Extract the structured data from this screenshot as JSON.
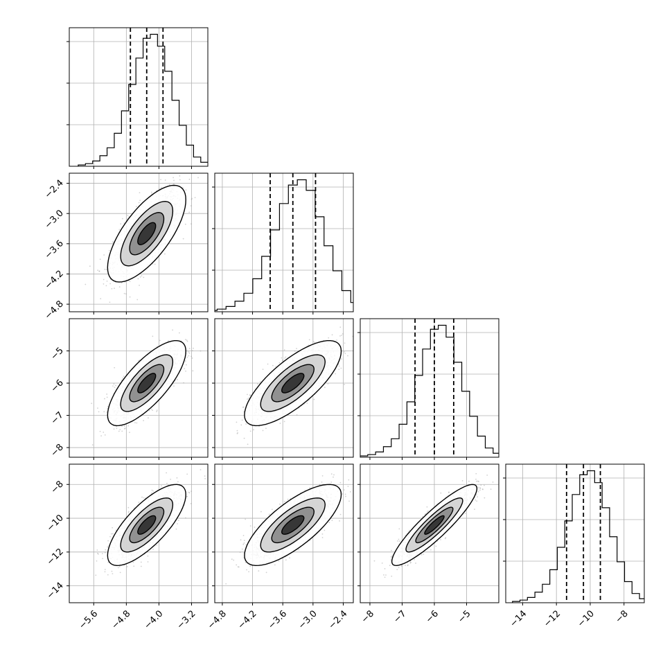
{
  "chart_data": {
    "type": "corner",
    "title": "",
    "parameters": [
      {
        "range": [
          -6.2,
          -2.8
        ],
        "ticks": [
          -5.6,
          -4.8,
          -4.0,
          -3.2
        ],
        "tick_labels": [
          "−5.6",
          "−4.8",
          "−4.0",
          "−3.2"
        ],
        "mean": -4.3,
        "sd": 0.4,
        "quantiles": [
          -4.7,
          -4.3,
          -3.9
        ],
        "hist_counts": [
          1,
          2,
          4,
          8,
          14,
          25,
          42,
          62,
          82,
          97,
          100,
          91,
          72,
          50,
          31,
          16,
          7,
          3,
          1
        ]
      },
      {
        "range": [
          -4.95,
          -2.2
        ],
        "ticks": [
          -4.8,
          -4.2,
          -3.6,
          -3.0,
          -2.4
        ],
        "tick_labels": [
          "−4.8",
          "−4.2",
          "−3.6",
          "−3.0",
          "−2.4"
        ],
        "mean": -3.4,
        "sd": 0.4,
        "quantiles": [
          -3.85,
          -3.4,
          -2.95
        ],
        "hist_counts": [
          1,
          2,
          4,
          8,
          14,
          25,
          42,
          62,
          82,
          96,
          100,
          92,
          72,
          50,
          31,
          16,
          7,
          3,
          1
        ]
      },
      {
        "range": [
          -8.3,
          -4.0
        ],
        "ticks": [
          -8,
          -7,
          -6,
          -5
        ],
        "tick_labels": [
          "−8",
          "−7",
          "−6",
          "−5"
        ],
        "mean": -6.0,
        "sd": 0.55,
        "quantiles": [
          -6.6,
          -6.0,
          -5.4
        ],
        "hist_counts": [
          1,
          2,
          4,
          8,
          14,
          25,
          42,
          62,
          82,
          97,
          100,
          91,
          72,
          50,
          31,
          16,
          7,
          3,
          1
        ]
      },
      {
        "range": [
          -15.0,
          -6.8
        ],
        "ticks": [
          -14,
          -12,
          -10,
          -8
        ],
        "tick_labels": [
          "−14",
          "−12",
          "−10",
          "−8"
        ],
        "mean": -10.4,
        "sd": 1.0,
        "quantiles": [
          -11.4,
          -10.4,
          -9.4
        ],
        "hist_counts": [
          1,
          2,
          4,
          8,
          14,
          25,
          42,
          62,
          82,
          97,
          100,
          91,
          72,
          50,
          31,
          16,
          7,
          3,
          1
        ]
      }
    ],
    "correlations": [
      [
        1.0,
        0.7,
        0.75,
        0.75
      ],
      [
        0.7,
        1.0,
        0.75,
        0.75
      ],
      [
        0.75,
        0.75,
        1.0,
        0.9
      ],
      [
        0.75,
        0.75,
        0.9,
        1.0
      ]
    ],
    "grid": true,
    "colors": {
      "points": "#9a9a9a",
      "contour": "#000000",
      "grid": "#b0b0b0",
      "quantile": "#000000"
    }
  }
}
